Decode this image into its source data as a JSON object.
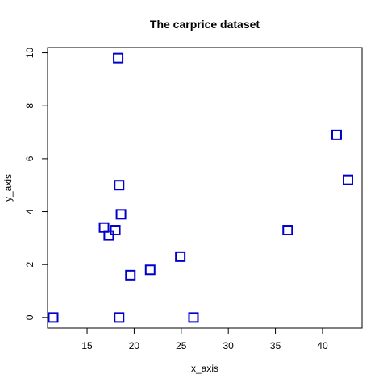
{
  "chart_data": {
    "type": "scatter",
    "title": "The carprice dataset",
    "xlabel": "x_axis",
    "ylabel": "y_axis",
    "xlim": [
      10.8,
      44.2
    ],
    "ylim": [
      -0.4,
      10.2
    ],
    "xticks": [
      15,
      20,
      25,
      30,
      35,
      40
    ],
    "yticks": [
      0,
      2,
      4,
      6,
      8,
      10
    ],
    "marker": "open-square",
    "color": "#0000cc",
    "grid": false,
    "points": [
      {
        "x": 18.3,
        "y": 9.8
      },
      {
        "x": 41.5,
        "y": 6.9
      },
      {
        "x": 42.7,
        "y": 5.2
      },
      {
        "x": 18.4,
        "y": 5.0
      },
      {
        "x": 18.6,
        "y": 3.9
      },
      {
        "x": 16.8,
        "y": 3.4
      },
      {
        "x": 18.0,
        "y": 3.3
      },
      {
        "x": 17.3,
        "y": 3.1
      },
      {
        "x": 36.3,
        "y": 3.3
      },
      {
        "x": 24.9,
        "y": 2.3
      },
      {
        "x": 21.7,
        "y": 1.8
      },
      {
        "x": 19.6,
        "y": 1.6
      },
      {
        "x": 11.4,
        "y": 0.0
      },
      {
        "x": 18.4,
        "y": 0.0
      },
      {
        "x": 26.3,
        "y": 0.0
      }
    ]
  }
}
